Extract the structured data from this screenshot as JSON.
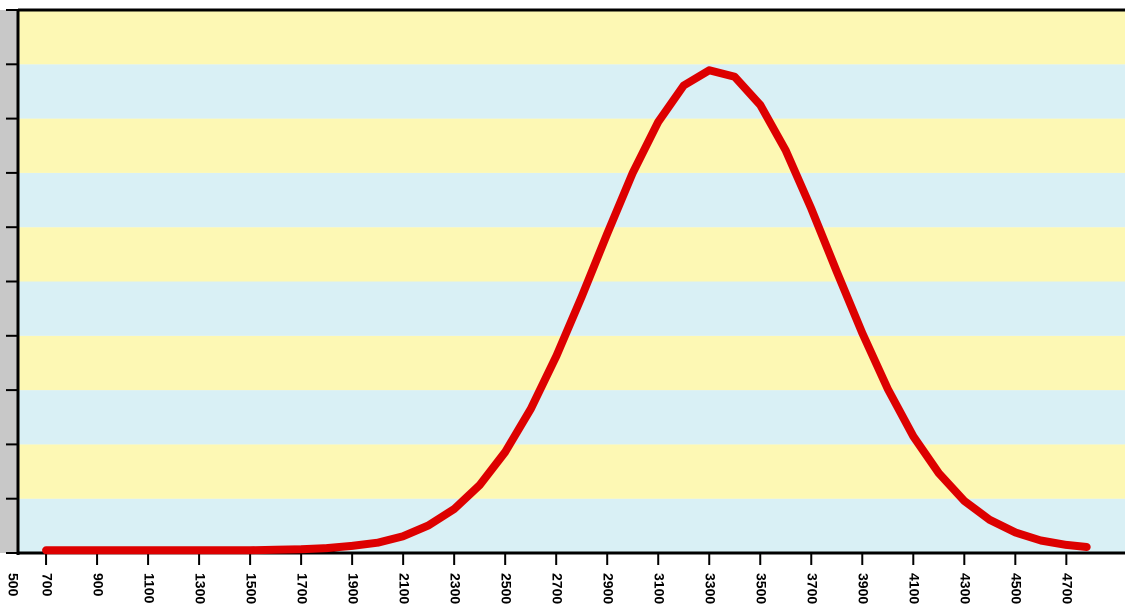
{
  "chart_data": {
    "type": "line",
    "x": [
      700,
      800,
      900,
      1000,
      1100,
      1200,
      1300,
      1400,
      1500,
      1600,
      1700,
      1800,
      1900,
      2000,
      2100,
      2200,
      2300,
      2400,
      2500,
      2600,
      2700,
      2800,
      2900,
      3000,
      3100,
      3200,
      3300,
      3400,
      3500,
      3600,
      3700,
      3800,
      3900,
      4000,
      4100,
      4200,
      4300,
      4400,
      4500,
      4600,
      4700,
      4780
    ],
    "series": [
      {
        "color": "#dd0000",
        "values": [
          0.05,
          0.05,
          0.05,
          0.05,
          0.05,
          0.05,
          0.05,
          0.05,
          0.05,
          0.06,
          0.07,
          0.09,
          0.13,
          0.19,
          0.31,
          0.51,
          0.81,
          1.25,
          1.86,
          2.65,
          3.62,
          4.72,
          5.88,
          7.0,
          7.94,
          8.61,
          8.89,
          8.77,
          8.25,
          7.41,
          6.34,
          5.18,
          4.05,
          3.02,
          2.15,
          1.47,
          0.96,
          0.61,
          0.38,
          0.23,
          0.15,
          0.11
        ]
      }
    ],
    "xlim": [
      590,
      4930
    ],
    "xticks": [
      500,
      700,
      900,
      1100,
      1300,
      1500,
      1700,
      1900,
      2100,
      2300,
      2500,
      2700,
      2900,
      3100,
      3300,
      3500,
      3700,
      3900,
      4100,
      4300,
      4500,
      4700
    ],
    "ylim": [
      0,
      10
    ],
    "yticks": [
      0,
      1,
      2,
      3,
      4,
      5,
      6,
      7,
      8,
      9,
      10
    ],
    "stripe_colors": [
      "#d9f0f5",
      "#fdf8b4"
    ]
  }
}
